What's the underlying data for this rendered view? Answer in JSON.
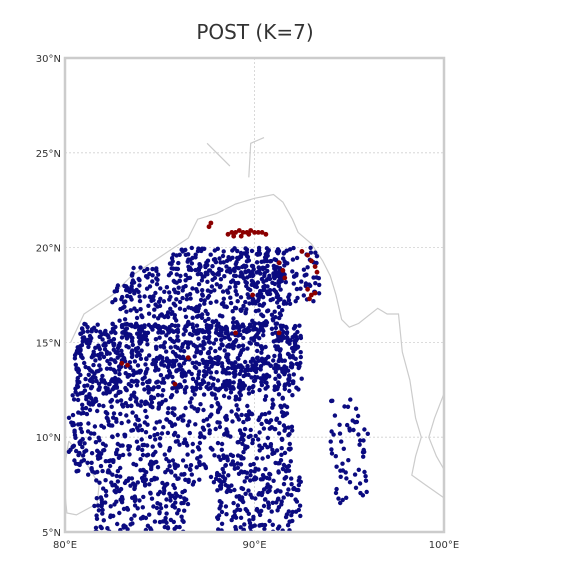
{
  "map": {
    "title": "POST (K=7)",
    "extent": {
      "lon": [
        80,
        100
      ],
      "lat": [
        5,
        30
      ]
    },
    "lat_ticks": [
      {
        "value": 30,
        "label": "30°N"
      },
      {
        "value": 25,
        "label": "25°N"
      },
      {
        "value": 20,
        "label": "20°N"
      },
      {
        "value": 15,
        "label": "15°N"
      },
      {
        "value": 10,
        "label": "10°N"
      },
      {
        "value": 5,
        "label": "5°N"
      }
    ],
    "lon_ticks": [
      {
        "value": 80,
        "label": "80°E"
      },
      {
        "value": 90,
        "label": "90°E"
      },
      {
        "value": 100,
        "label": "100°E"
      }
    ],
    "colors": {
      "cluster_main": "#0b0b80",
      "cluster_minor": "#8b0000",
      "coastline": "#cccccc",
      "gridline": "#d0d0d0",
      "frame": "#cccccc"
    },
    "coastline_east": [
      [
        80.3,
        15.0
      ],
      [
        81.0,
        16.5
      ],
      [
        82.5,
        17.5
      ],
      [
        83.5,
        18.5
      ],
      [
        85.0,
        19.5
      ],
      [
        86.5,
        20.5
      ],
      [
        87.0,
        21.5
      ],
      [
        88.0,
        21.8
      ],
      [
        89.0,
        22.3
      ],
      [
        90.0,
        22.6
      ],
      [
        91.0,
        22.8
      ],
      [
        91.5,
        22.4
      ],
      [
        92.0,
        21.5
      ],
      [
        92.3,
        20.8
      ],
      [
        93.0,
        20.2
      ],
      [
        93.6,
        19.3
      ],
      [
        94.0,
        18.5
      ],
      [
        94.3,
        17.5
      ],
      [
        94.6,
        16.2
      ],
      [
        95.0,
        15.8
      ],
      [
        95.5,
        16.0
      ],
      [
        96.5,
        16.8
      ],
      [
        97.0,
        16.5
      ],
      [
        97.6,
        16.5
      ],
      [
        97.8,
        14.5
      ],
      [
        98.2,
        13.0
      ],
      [
        98.5,
        11.0
      ],
      [
        98.8,
        10.0
      ],
      [
        98.5,
        9.0
      ],
      [
        98.3,
        8.0
      ],
      [
        99.0,
        7.5
      ],
      [
        100.0,
        6.8
      ]
    ],
    "coastline_west_srilanka": [
      [
        80.2,
        9.8
      ],
      [
        79.9,
        8.0
      ],
      [
        80.1,
        6.0
      ],
      [
        80.6,
        5.9
      ],
      [
        81.7,
        6.5
      ],
      [
        81.8,
        7.5
      ],
      [
        81.2,
        8.5
      ],
      [
        80.7,
        9.2
      ],
      [
        80.2,
        9.8
      ]
    ],
    "coastline_eastern_edge": [
      [
        100.0,
        12.3
      ],
      [
        99.5,
        11.0
      ],
      [
        99.2,
        10.0
      ],
      [
        99.6,
        9.0
      ],
      [
        100.0,
        8.3
      ]
    ],
    "coastline_inland": [
      [
        89.7,
        23.7
      ],
      [
        89.8,
        25.5
      ],
      [
        90.5,
        25.8
      ]
    ],
    "coastline_inland2": [
      [
        87.5,
        25.5
      ],
      [
        88.7,
        24.3
      ]
    ],
    "cluster_minor_points": [
      [
        88.6,
        20.7
      ],
      [
        88.8,
        20.8
      ],
      [
        89.0,
        20.8
      ],
      [
        89.2,
        20.9
      ],
      [
        89.4,
        20.8
      ],
      [
        89.6,
        20.8
      ],
      [
        89.8,
        20.9
      ],
      [
        90.0,
        20.8
      ],
      [
        90.2,
        20.8
      ],
      [
        90.4,
        20.8
      ],
      [
        90.6,
        20.7
      ],
      [
        88.9,
        20.6
      ],
      [
        89.3,
        20.6
      ],
      [
        89.7,
        20.7
      ],
      [
        92.5,
        19.8
      ],
      [
        92.8,
        19.6
      ],
      [
        93.0,
        19.3
      ],
      [
        93.2,
        19.0
      ],
      [
        93.3,
        18.7
      ],
      [
        91.3,
        19.2
      ],
      [
        91.5,
        18.8
      ],
      [
        91.6,
        18.4
      ],
      [
        93.0,
        17.5
      ],
      [
        92.8,
        17.8
      ],
      [
        93.2,
        17.6
      ],
      [
        92.9,
        17.3
      ],
      [
        87.7,
        21.3
      ],
      [
        87.6,
        21.1
      ],
      [
        83.0,
        13.9
      ],
      [
        83.3,
        13.8
      ],
      [
        85.8,
        12.8
      ],
      [
        86.5,
        14.2
      ],
      [
        89.9,
        17.5
      ],
      [
        89.0,
        15.5
      ],
      [
        91.3,
        15.5
      ]
    ]
  }
}
